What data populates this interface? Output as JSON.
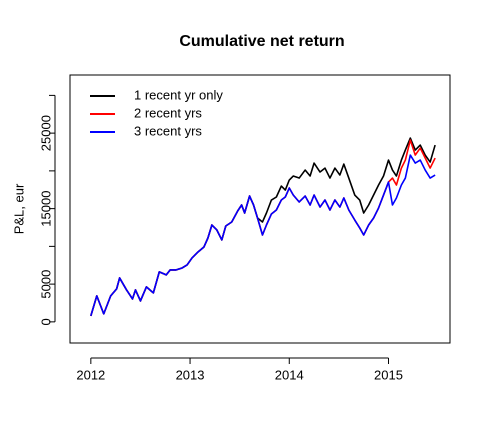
{
  "chart_data": {
    "type": "line",
    "title": "Cumulative net return",
    "ylabel": "P&L, eur",
    "x": [
      2012.0,
      2012.06,
      2012.13,
      2012.2,
      2012.26,
      2012.29,
      2012.36,
      2012.42,
      2012.45,
      2012.5,
      2012.56,
      2012.63,
      2012.69,
      2012.76,
      2012.8,
      2012.86,
      2012.92,
      2012.97,
      2013.02,
      2013.08,
      2013.14,
      2013.18,
      2013.22,
      2013.27,
      2013.32,
      2013.36,
      2013.42,
      2013.48,
      2013.52,
      2013.55,
      2013.6,
      2013.64,
      2013.68,
      2013.73,
      2013.77,
      2013.82,
      2013.87,
      2013.92,
      2013.96,
      2014.0,
      2014.04,
      2014.1,
      2014.16,
      2014.21,
      2014.25,
      2014.31,
      2014.36,
      2014.41,
      2014.46,
      2014.51,
      2014.55,
      2014.6,
      2014.66,
      2014.71,
      2014.75,
      2014.8,
      2014.85,
      2014.9,
      2014.95,
      2015.0,
      2015.04,
      2015.08,
      2015.13,
      2015.17,
      2015.22,
      2015.27,
      2015.32,
      2015.37,
      2015.42,
      2015.47
    ],
    "series": [
      {
        "name": "1 recent yr only",
        "color": "#000000",
        "values": [
          790,
          3440,
          1060,
          3440,
          4370,
          5820,
          4230,
          3040,
          4230,
          2780,
          4630,
          3840,
          6620,
          6220,
          6880,
          6880,
          7140,
          7540,
          8470,
          9260,
          9920,
          11110,
          12830,
          12170,
          10850,
          12700,
          13230,
          14690,
          15480,
          14420,
          16670,
          15480,
          13760,
          13230,
          14420,
          16140,
          16540,
          17990,
          17460,
          18790,
          19320,
          19050,
          20110,
          19320,
          21030,
          19850,
          20370,
          19050,
          20370,
          19450,
          20900,
          19050,
          16800,
          16140,
          14420,
          15480,
          16800,
          18130,
          19320,
          21430,
          20110,
          19320,
          21430,
          22760,
          24340,
          22760,
          23420,
          22090,
          21170,
          23420
        ]
      },
      {
        "name": "2 recent yrs",
        "color": "#ff0000",
        "values": [
          790,
          3440,
          1060,
          3440,
          4370,
          5820,
          4230,
          3040,
          4230,
          2780,
          4630,
          3840,
          6620,
          6220,
          6880,
          6880,
          7140,
          7540,
          8470,
          9260,
          9920,
          11110,
          12830,
          12170,
          10850,
          12700,
          13230,
          14690,
          15480,
          14420,
          16670,
          15480,
          13760,
          11510,
          12830,
          14290,
          14820,
          16140,
          16540,
          17730,
          16800,
          15880,
          16670,
          15480,
          16800,
          15210,
          16140,
          14820,
          16140,
          15210,
          16410,
          14820,
          13490,
          12440,
          11510,
          12830,
          13760,
          15080,
          16800,
          18520,
          19050,
          18130,
          20370,
          21430,
          24080,
          22090,
          23020,
          21700,
          20370,
          21700
        ]
      },
      {
        "name": "3 recent yrs",
        "color": "#0000ff",
        "values": [
          790,
          3440,
          1060,
          3440,
          4370,
          5820,
          4230,
          3040,
          4230,
          2780,
          4630,
          3840,
          6620,
          6220,
          6880,
          6880,
          7140,
          7540,
          8470,
          9260,
          9920,
          11110,
          12830,
          12170,
          10850,
          12700,
          13230,
          14690,
          15480,
          14420,
          16670,
          15480,
          13760,
          11510,
          12830,
          14290,
          14820,
          16140,
          16540,
          17730,
          16800,
          15880,
          16670,
          15480,
          16800,
          15210,
          16140,
          14820,
          16140,
          15210,
          16410,
          14820,
          13490,
          12440,
          11510,
          12830,
          13760,
          15080,
          16800,
          18520,
          15480,
          16410,
          18130,
          19050,
          22090,
          21030,
          21430,
          20110,
          19050,
          19450
        ]
      }
    ],
    "xlim": [
      2011.79,
      2015.62
    ],
    "xticks": [
      2012,
      2013,
      2014,
      2015
    ],
    "ylim": [
      -2800,
      32700
    ],
    "yticks": [
      0,
      5000,
      15000,
      25000
    ],
    "yticks_unlabeled": [
      10000,
      20000,
      30000
    ],
    "legend": "top-left"
  }
}
